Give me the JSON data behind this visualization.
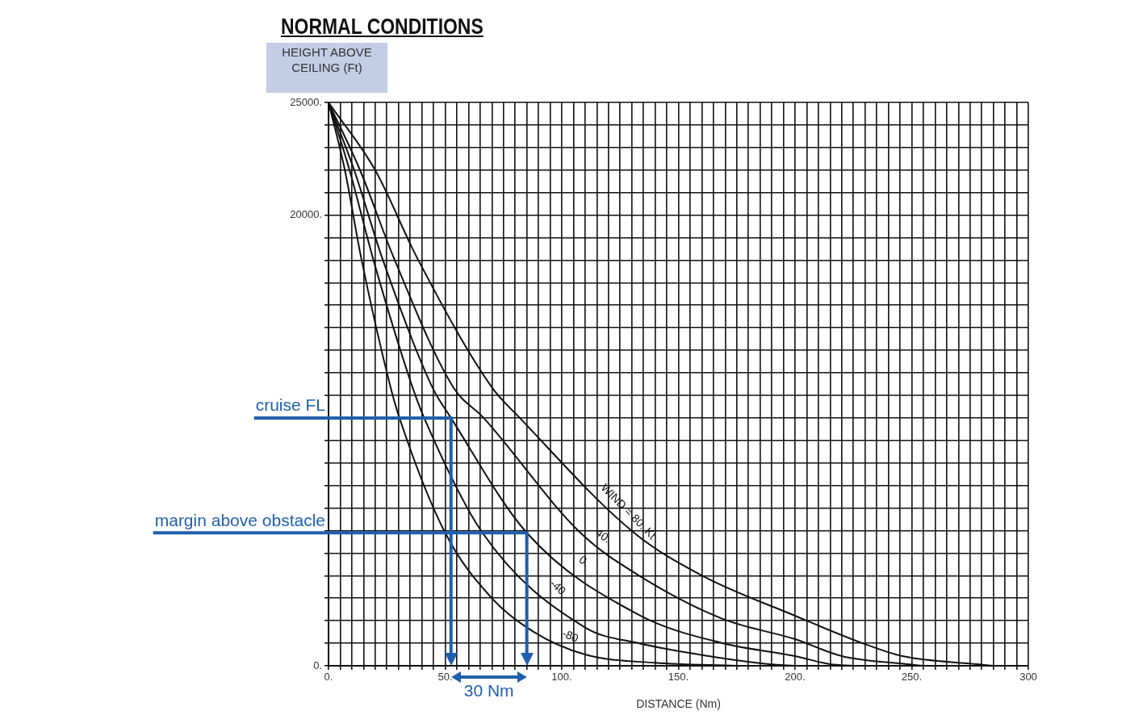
{
  "chart_data": {
    "type": "line",
    "title": "NORMAL CONDITIONS",
    "xlabel": "DISTANCE (Nm)",
    "ylabel": "HEIGHT ABOVE CEILING (Ft)",
    "xlim": [
      0,
      300
    ],
    "ylim": [
      0,
      25000
    ],
    "xticks": [
      {
        "value": 0,
        "label": "0."
      },
      {
        "value": 5,
        "label": null
      },
      {
        "value": 10,
        "label": null
      },
      {
        "value": 15,
        "label": null
      },
      {
        "value": 20,
        "label": null
      },
      {
        "value": 25,
        "label": null
      },
      {
        "value": 30,
        "label": null
      },
      {
        "value": 35,
        "label": null
      },
      {
        "value": 40,
        "label": null
      },
      {
        "value": 45,
        "label": null
      },
      {
        "value": 50,
        "label": "50."
      },
      {
        "value": 55,
        "label": null
      },
      {
        "value": 60,
        "label": null
      },
      {
        "value": 65,
        "label": null
      },
      {
        "value": 70,
        "label": null
      },
      {
        "value": 75,
        "label": null
      },
      {
        "value": 80,
        "label": null
      },
      {
        "value": 85,
        "label": null
      },
      {
        "value": 90,
        "label": null
      },
      {
        "value": 95,
        "label": null
      },
      {
        "value": 100,
        "label": "100."
      },
      {
        "value": 105,
        "label": null
      },
      {
        "value": 110,
        "label": null
      },
      {
        "value": 115,
        "label": null
      },
      {
        "value": 120,
        "label": null
      },
      {
        "value": 125,
        "label": null
      },
      {
        "value": 130,
        "label": null
      },
      {
        "value": 135,
        "label": null
      },
      {
        "value": 140,
        "label": null
      },
      {
        "value": 145,
        "label": null
      },
      {
        "value": 150,
        "label": "150."
      },
      {
        "value": 155,
        "label": null
      },
      {
        "value": 160,
        "label": null
      },
      {
        "value": 165,
        "label": null
      },
      {
        "value": 170,
        "label": null
      },
      {
        "value": 175,
        "label": null
      },
      {
        "value": 180,
        "label": null
      },
      {
        "value": 185,
        "label": null
      },
      {
        "value": 190,
        "label": null
      },
      {
        "value": 195,
        "label": null
      },
      {
        "value": 200,
        "label": "200."
      },
      {
        "value": 205,
        "label": null
      },
      {
        "value": 210,
        "label": null
      },
      {
        "value": 215,
        "label": null
      },
      {
        "value": 220,
        "label": null
      },
      {
        "value": 225,
        "label": null
      },
      {
        "value": 230,
        "label": null
      },
      {
        "value": 235,
        "label": null
      },
      {
        "value": 240,
        "label": null
      },
      {
        "value": 245,
        "label": null
      },
      {
        "value": 250,
        "label": "250."
      },
      {
        "value": 255,
        "label": null
      },
      {
        "value": 260,
        "label": null
      },
      {
        "value": 265,
        "label": null
      },
      {
        "value": 270,
        "label": null
      },
      {
        "value": 275,
        "label": null
      },
      {
        "value": 280,
        "label": null
      },
      {
        "value": 285,
        "label": null
      },
      {
        "value": 290,
        "label": null
      },
      {
        "value": 295,
        "label": null
      },
      {
        "value": 300,
        "label": "300"
      }
    ],
    "yticks": [
      {
        "value": 0,
        "label": "0."
      },
      {
        "value": 1000,
        "label": null
      },
      {
        "value": 2000,
        "label": null
      },
      {
        "value": 3000,
        "label": null
      },
      {
        "value": 4000,
        "label": null
      },
      {
        "value": 5000,
        "label": null
      },
      {
        "value": 6000,
        "label": null
      },
      {
        "value": 7000,
        "label": null
      },
      {
        "value": 8000,
        "label": null
      },
      {
        "value": 9000,
        "label": null
      },
      {
        "value": 10000,
        "label": null
      },
      {
        "value": 11000,
        "label": null
      },
      {
        "value": 12000,
        "label": null
      },
      {
        "value": 13000,
        "label": null
      },
      {
        "value": 14000,
        "label": null
      },
      {
        "value": 15000,
        "label": null
      },
      {
        "value": 16000,
        "label": null
      },
      {
        "value": 17000,
        "label": null
      },
      {
        "value": 18000,
        "label": null
      },
      {
        "value": 19000,
        "label": null
      },
      {
        "value": 20000,
        "label": "20000."
      },
      {
        "value": 21000,
        "label": null
      },
      {
        "value": 22000,
        "label": null
      },
      {
        "value": 23000,
        "label": null
      },
      {
        "value": 24000,
        "label": null
      },
      {
        "value": 25000,
        "label": "25000."
      }
    ],
    "grid": true,
    "legend": false,
    "series": [
      {
        "name": "WIND = 80. Kt",
        "color": "#111111",
        "x": [
          0,
          20,
          38,
          70,
          82,
          131,
          160,
          200,
          229,
          246,
          278,
          285
        ],
        "values": [
          25000,
          22000,
          18100,
          12360,
          11000,
          5900,
          4010,
          2220,
          1000,
          430,
          70,
          0
        ]
      },
      {
        "name": "40.",
        "color": "#111111",
        "x": [
          0,
          13.5,
          28,
          53.5,
          66.5,
          108,
          133,
          169,
          200,
          220,
          248,
          255
        ],
        "values": [
          25000,
          22000,
          18100,
          12360,
          11000,
          5900,
          4010,
          2080,
          1180,
          430,
          70,
          0
        ]
      },
      {
        "name": "0.",
        "color": "#111111",
        "x": [
          0,
          11,
          23,
          44.5,
          52.5,
          85,
          133,
          169,
          200,
          215,
          225
        ],
        "values": [
          25000,
          22000,
          18100,
          12360,
          11000,
          5900,
          2260,
          1000,
          430,
          70,
          0
        ]
      },
      {
        "name": "-40",
        "color": "#111111",
        "x": [
          0,
          9,
          19,
          36,
          41,
          66,
          110,
          133,
          163,
          189,
          200
        ],
        "values": [
          25000,
          22000,
          18100,
          12360,
          11000,
          5900,
          1700,
          1000,
          430,
          70,
          0
        ]
      },
      {
        "name": "-80",
        "color": "#111111",
        "x": [
          0,
          7,
          14,
          26.6,
          30.4,
          50,
          70,
          88,
          110,
          140,
          175
        ],
        "values": [
          25000,
          22000,
          18100,
          12360,
          11000,
          5900,
          3000,
          1500,
          500,
          130,
          0
        ]
      }
    ],
    "ref_lines": [
      {
        "axis": "y",
        "value": 11000,
        "label": "cruise FL",
        "color": "#1f5fae"
      },
      {
        "axis": "x",
        "value": 52.5,
        "color": "#1f5fae"
      },
      {
        "axis": "y",
        "value": 5900,
        "label": "margin above obstacle",
        "color": "#1f5fae"
      },
      {
        "axis": "x",
        "value": 85,
        "color": "#1f5fae"
      }
    ],
    "annotations": [
      "30 Nm"
    ]
  }
}
